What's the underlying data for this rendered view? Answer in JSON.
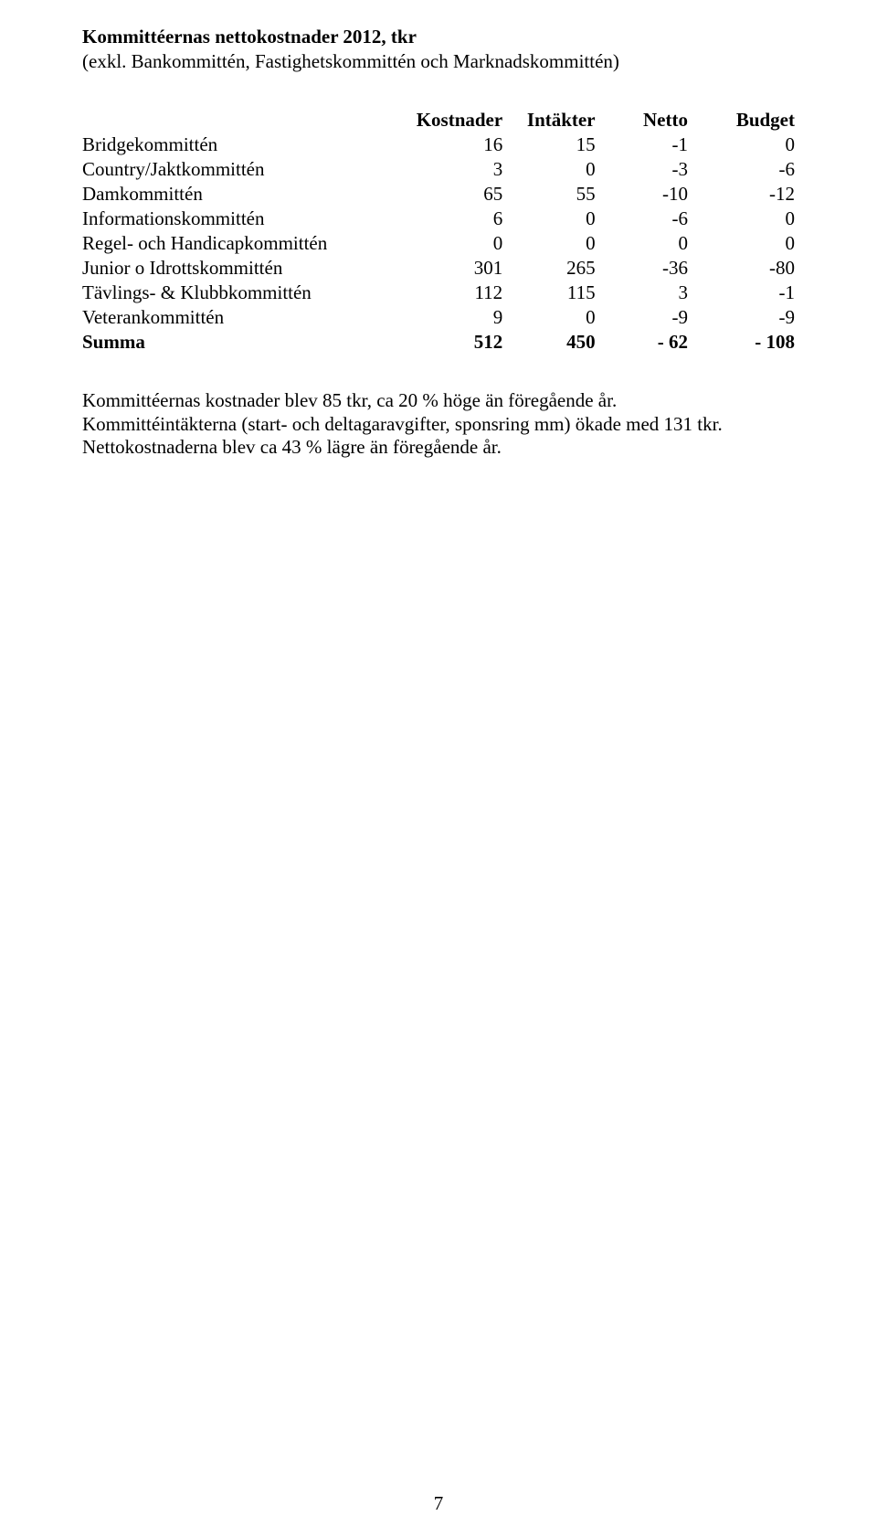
{
  "title": "Kommittéernas nettokostnader 2012, tkr",
  "subtitle": "(exkl. Bankommittén, Fastighetskommittén och Marknadskommittén)",
  "table": {
    "headers": [
      "",
      "Kostnader",
      "Intäkter",
      "Netto",
      "Budget"
    ],
    "rows": [
      {
        "label": "Bridgekommittén",
        "c1": "16",
        "c2": "15",
        "c3": "-1",
        "c4": "0"
      },
      {
        "label": "Country/Jaktkommittén",
        "c1": "3",
        "c2": "0",
        "c3": "-3",
        "c4": "-6"
      },
      {
        "label": "Damkommittén",
        "c1": "65",
        "c2": "55",
        "c3": "-10",
        "c4": "-12"
      },
      {
        "label": "Informationskommittén",
        "c1": "6",
        "c2": "0",
        "c3": "-6",
        "c4": "0"
      },
      {
        "label": "Regel- och Handicapkommittén",
        "c1": "0",
        "c2": "0",
        "c3": "0",
        "c4": "0"
      },
      {
        "label": "Junior o Idrottskommittén",
        "c1": "301",
        "c2": "265",
        "c3": "-36",
        "c4": "-80"
      },
      {
        "label": "Tävlings- & Klubbkommittén",
        "c1": "112",
        "c2": "115",
        "c3": "3",
        "c4": "-1"
      },
      {
        "label": "Veterankommittén",
        "c1": "9",
        "c2": "0",
        "c3": "-9",
        "c4": "-9"
      }
    ],
    "summary": {
      "label": "Summa",
      "c1": "512",
      "c2": "450",
      "c3": "- 62",
      "c4": "- 108"
    }
  },
  "paragraph": {
    "line1": "Kommittéernas kostnader blev 85 tkr, ca 20 % höge än föregående år.",
    "line2": "Kommittéintäkterna (start- och deltagaravgifter, sponsring mm) ökade med 131 tkr.",
    "line3": "Nettokostnaderna blev ca 43 % lägre än föregående år."
  },
  "pageNumber": "7",
  "col_widths": {
    "first": "44%",
    "c1": "15%",
    "c2": "13%",
    "c3": "13%",
    "c4": "15%"
  }
}
